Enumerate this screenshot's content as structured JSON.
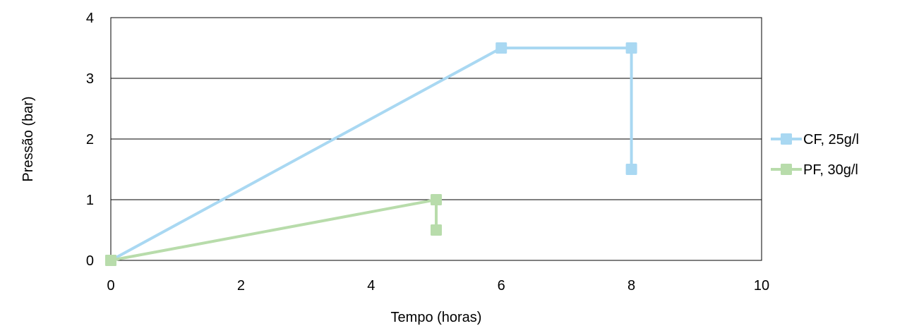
{
  "chart_data": {
    "type": "scatter",
    "title": "",
    "xlabel": "Tempo (horas)",
    "ylabel": "Pressão (bar)",
    "xlim": [
      0,
      10
    ],
    "ylim": [
      0,
      4
    ],
    "x_ticks": [
      0,
      2,
      4,
      6,
      8,
      10
    ],
    "y_ticks": [
      0,
      1,
      2,
      3,
      4
    ],
    "grid": "horizontal major gridlines on",
    "legend_position": "right",
    "series": [
      {
        "name": "CF, 25g/l",
        "color": "#a9d8f2",
        "marker": "square",
        "points": [
          [
            0,
            0
          ],
          [
            6,
            3.5
          ],
          [
            8,
            3.5
          ],
          [
            8,
            1.5
          ]
        ]
      },
      {
        "name": "PF, 30g/l",
        "color": "#b8dcab",
        "marker": "square",
        "points": [
          [
            0,
            0
          ],
          [
            5,
            1
          ],
          [
            5,
            0.5
          ]
        ]
      }
    ]
  }
}
